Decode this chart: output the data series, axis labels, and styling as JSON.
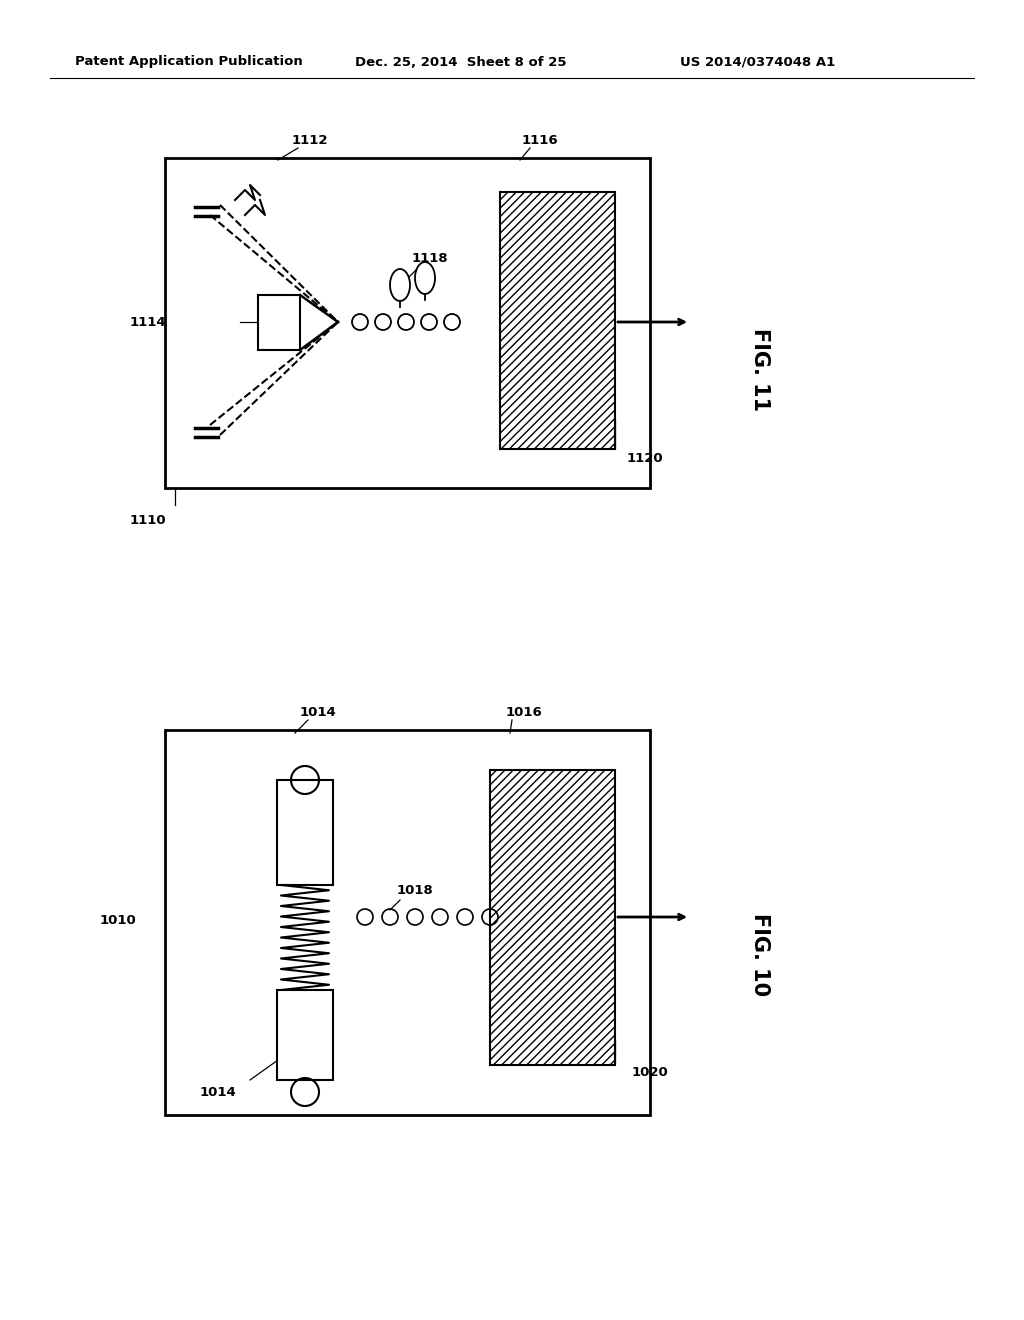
{
  "bg_color": "#ffffff",
  "line_color": "#000000",
  "header_text": "Patent Application Publication",
  "header_date": "Dec. 25, 2014  Sheet 8 of 25",
  "header_patent": "US 2014/0374048 A1",
  "fig11_label": "FIG. 11",
  "fig10_label": "FIG. 10"
}
